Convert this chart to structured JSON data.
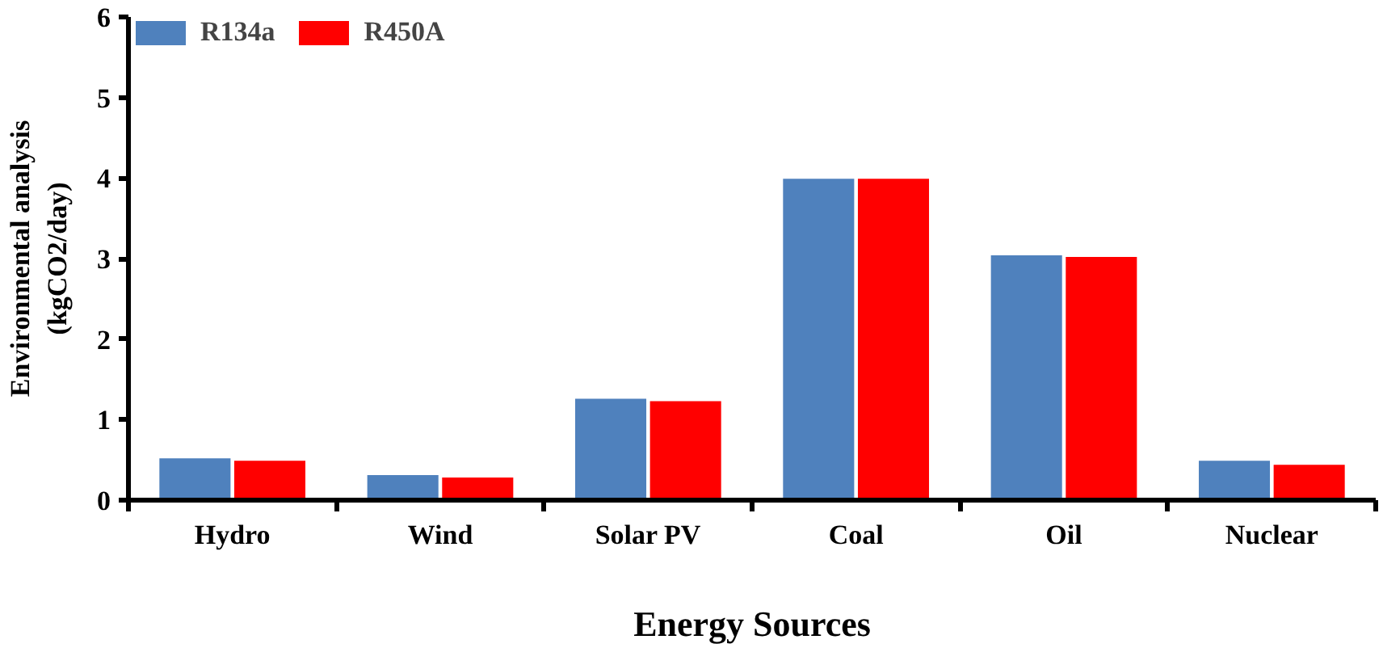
{
  "chart_data": {
    "type": "bar",
    "xlabel": "Energy Sources",
    "ylabel": "Environmental analysis\n(kgCO2/day)",
    "categories": [
      "Hydro",
      "Wind",
      "Solar PV",
      "Coal",
      "Oil",
      "Nuclear"
    ],
    "series": [
      {
        "name": "R134a",
        "color": "#4f81bd",
        "values": [
          0.53,
          0.32,
          1.27,
          4.0,
          3.05,
          0.5
        ]
      },
      {
        "name": "R450A",
        "color": "#ff0000",
        "values": [
          0.5,
          0.29,
          1.24,
          4.0,
          3.03,
          0.45
        ]
      }
    ],
    "ylim": [
      0,
      6
    ],
    "yticks": [
      0,
      1,
      2,
      3,
      4,
      5,
      6
    ],
    "grid": false,
    "legend": "top left"
  }
}
